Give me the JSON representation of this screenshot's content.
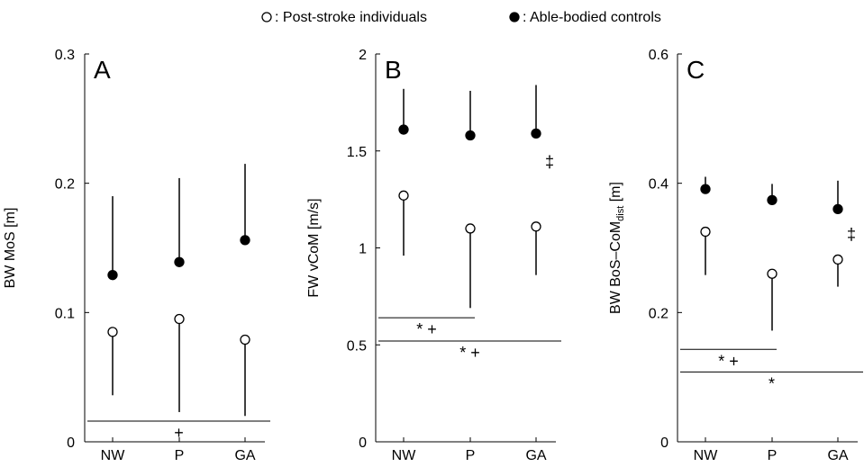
{
  "legend": {
    "open_symbol": "○",
    "open_label": ": Post-stroke individuals",
    "filled_symbol": "●",
    "filled_label": ": Able-bodied controls"
  },
  "chart_data": [
    {
      "type": "scatter",
      "panel": "A",
      "ylabel": "BW MoS [m]",
      "ylim": [
        0,
        0.3
      ],
      "yticks": [
        "0",
        "0.1",
        "0.2",
        "0.3"
      ],
      "categories": [
        "NW",
        "P",
        "GA"
      ],
      "series": [
        {
          "name": "Post-stroke individuals",
          "values": [
            0.085,
            0.095,
            0.079
          ],
          "whisker_end": [
            0.036,
            0.023,
            0.02
          ],
          "whisker_dir": "down"
        },
        {
          "name": "Able-bodied controls",
          "values": [
            0.129,
            0.139,
            0.156
          ],
          "whisker_end": [
            0.19,
            0.204,
            0.215
          ],
          "whisker_dir": "up"
        }
      ],
      "annotations": [
        {
          "text": "+",
          "from": "NW",
          "to": "GA",
          "y": 0.016
        }
      ],
      "side_marker": ""
    },
    {
      "type": "scatter",
      "panel": "B",
      "ylabel": "FW vCoM [m/s]",
      "ylim": [
        0,
        2
      ],
      "yticks": [
        "0",
        "0.5",
        "1",
        "1.5",
        "2"
      ],
      "categories": [
        "NW",
        "P",
        "GA"
      ],
      "series": [
        {
          "name": "Post-stroke individuals",
          "values": [
            1.27,
            1.1,
            1.11
          ],
          "whisker_end": [
            0.96,
            0.69,
            0.86
          ],
          "whisker_dir": "down"
        },
        {
          "name": "Able-bodied controls",
          "values": [
            1.61,
            1.58,
            1.59
          ],
          "whisker_end": [
            1.82,
            1.81,
            1.84
          ],
          "whisker_dir": "up"
        }
      ],
      "annotations": [
        {
          "text": "* +",
          "from": "NW",
          "to": "P",
          "y": 0.64
        },
        {
          "text": "* +",
          "from": "NW",
          "to": "GA",
          "y": 0.52
        }
      ],
      "side_marker": "‡"
    },
    {
      "type": "scatter",
      "panel": "C",
      "ylabel": "BW BoS–CoM",
      "ylabel_sub": "dist",
      "ylabel_unit": " [m]",
      "ylim": [
        0,
        0.6
      ],
      "yticks": [
        "0",
        "0.2",
        "0.4",
        "0.6"
      ],
      "categories": [
        "NW",
        "P",
        "GA"
      ],
      "series": [
        {
          "name": "Post-stroke individuals",
          "values": [
            0.325,
            0.26,
            0.282
          ],
          "whisker_end": [
            0.258,
            0.172,
            0.24
          ],
          "whisker_dir": "down"
        },
        {
          "name": "Able-bodied controls",
          "values": [
            0.391,
            0.374,
            0.36
          ],
          "whisker_end": [
            0.41,
            0.399,
            0.404
          ],
          "whisker_dir": "up"
        }
      ],
      "annotations": [
        {
          "text": "* +",
          "from": "NW",
          "to": "P",
          "y": 0.143
        },
        {
          "text": "*",
          "from": "NW",
          "to": "GA",
          "y": 0.108
        }
      ],
      "side_marker": "‡"
    }
  ]
}
